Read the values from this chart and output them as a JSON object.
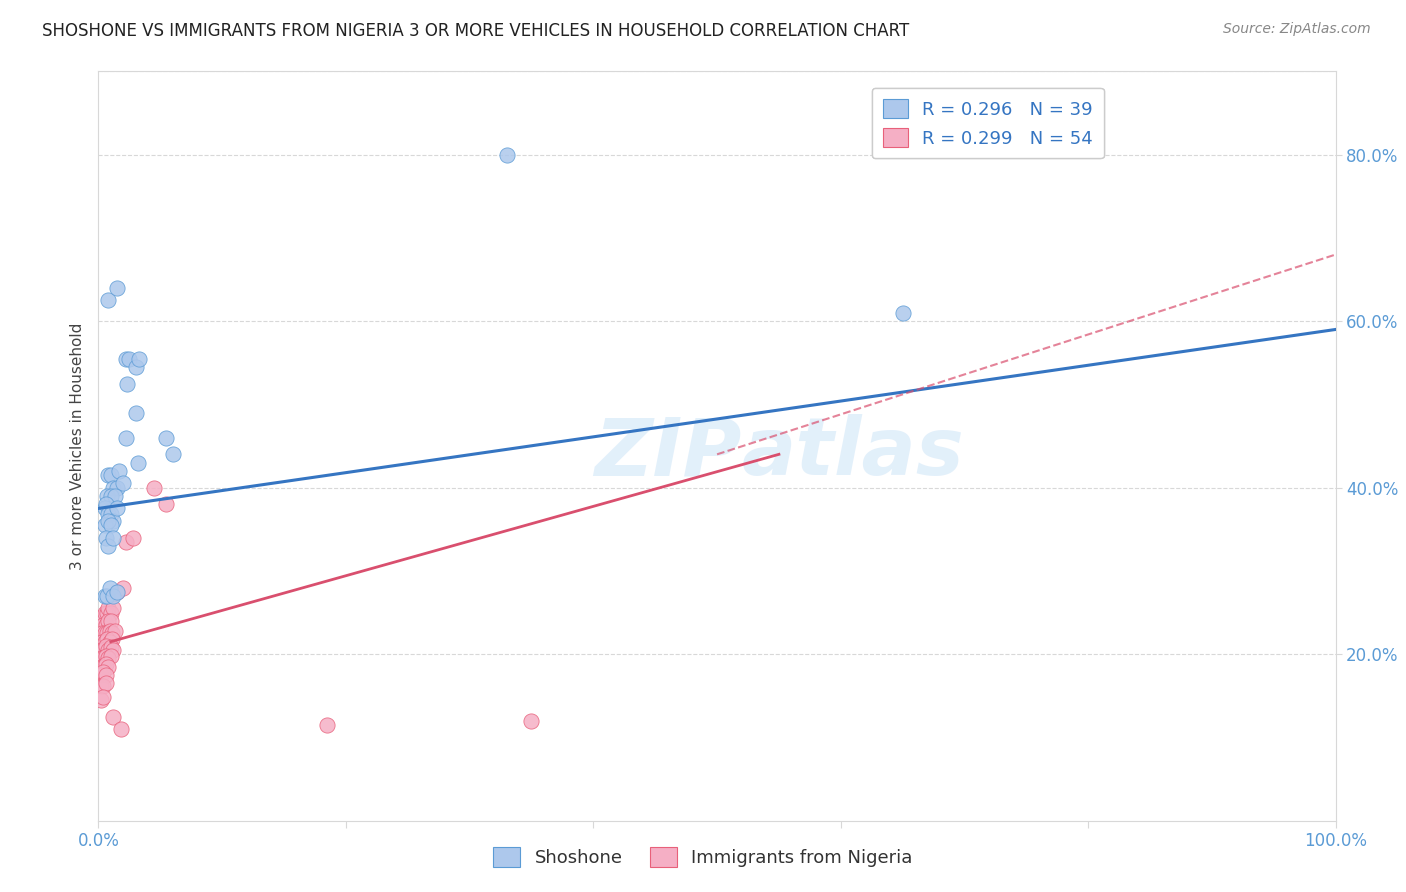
{
  "title": "SHOSHONE VS IMMIGRANTS FROM NIGERIA 3 OR MORE VEHICLES IN HOUSEHOLD CORRELATION CHART",
  "source": "Source: ZipAtlas.com",
  "ylabel": "3 or more Vehicles in Household",
  "legend_label1": "Shoshone",
  "legend_label2": "Immigrants from Nigeria",
  "watermark": "ZIPatlas",
  "shoshone_color": "#adc8ec",
  "nigeria_color": "#f5afc5",
  "shoshone_edge_color": "#5b9bd5",
  "nigeria_edge_color": "#e8607a",
  "shoshone_line_color": "#3575c2",
  "nigeria_line_color": "#d94f6e",
  "grid_color": "#d8d8d8",
  "ytick_color": "#5b9bd5",
  "xtick_color": "#5b9bd5",
  "shoshone_scatter": [
    [
      0.008,
      0.625
    ],
    [
      0.015,
      0.64
    ],
    [
      0.022,
      0.555
    ],
    [
      0.023,
      0.525
    ],
    [
      0.025,
      0.555
    ],
    [
      0.03,
      0.49
    ],
    [
      0.03,
      0.545
    ],
    [
      0.033,
      0.555
    ],
    [
      0.022,
      0.46
    ],
    [
      0.032,
      0.43
    ],
    [
      0.008,
      0.415
    ],
    [
      0.01,
      0.415
    ],
    [
      0.012,
      0.4
    ],
    [
      0.015,
      0.4
    ],
    [
      0.017,
      0.42
    ],
    [
      0.02,
      0.405
    ],
    [
      0.007,
      0.39
    ],
    [
      0.01,
      0.39
    ],
    [
      0.013,
      0.39
    ],
    [
      0.005,
      0.375
    ],
    [
      0.006,
      0.38
    ],
    [
      0.008,
      0.368
    ],
    [
      0.01,
      0.368
    ],
    [
      0.012,
      0.36
    ],
    [
      0.015,
      0.375
    ],
    [
      0.005,
      0.355
    ],
    [
      0.008,
      0.36
    ],
    [
      0.01,
      0.355
    ],
    [
      0.006,
      0.34
    ],
    [
      0.008,
      0.33
    ],
    [
      0.012,
      0.34
    ],
    [
      0.005,
      0.27
    ],
    [
      0.007,
      0.27
    ],
    [
      0.009,
      0.28
    ],
    [
      0.012,
      0.27
    ],
    [
      0.015,
      0.275
    ],
    [
      0.055,
      0.46
    ],
    [
      0.06,
      0.44
    ],
    [
      0.65,
      0.61
    ],
    [
      0.33,
      0.8
    ]
  ],
  "nigeria_scatter": [
    [
      0.003,
      0.245
    ],
    [
      0.005,
      0.25
    ],
    [
      0.007,
      0.25
    ],
    [
      0.008,
      0.255
    ],
    [
      0.01,
      0.25
    ],
    [
      0.012,
      0.255
    ],
    [
      0.004,
      0.235
    ],
    [
      0.006,
      0.235
    ],
    [
      0.008,
      0.24
    ],
    [
      0.01,
      0.24
    ],
    [
      0.003,
      0.225
    ],
    [
      0.005,
      0.225
    ],
    [
      0.007,
      0.225
    ],
    [
      0.009,
      0.228
    ],
    [
      0.011,
      0.225
    ],
    [
      0.013,
      0.228
    ],
    [
      0.003,
      0.215
    ],
    [
      0.005,
      0.215
    ],
    [
      0.007,
      0.218
    ],
    [
      0.009,
      0.215
    ],
    [
      0.011,
      0.218
    ],
    [
      0.002,
      0.205
    ],
    [
      0.004,
      0.205
    ],
    [
      0.006,
      0.21
    ],
    [
      0.008,
      0.205
    ],
    [
      0.01,
      0.208
    ],
    [
      0.012,
      0.205
    ],
    [
      0.002,
      0.195
    ],
    [
      0.004,
      0.195
    ],
    [
      0.006,
      0.198
    ],
    [
      0.008,
      0.195
    ],
    [
      0.01,
      0.198
    ],
    [
      0.002,
      0.185
    ],
    [
      0.004,
      0.185
    ],
    [
      0.006,
      0.188
    ],
    [
      0.008,
      0.185
    ],
    [
      0.002,
      0.175
    ],
    [
      0.004,
      0.178
    ],
    [
      0.006,
      0.175
    ],
    [
      0.002,
      0.162
    ],
    [
      0.004,
      0.162
    ],
    [
      0.006,
      0.165
    ],
    [
      0.002,
      0.145
    ],
    [
      0.004,
      0.148
    ],
    [
      0.015,
      0.275
    ],
    [
      0.02,
      0.28
    ],
    [
      0.022,
      0.335
    ],
    [
      0.028,
      0.34
    ],
    [
      0.045,
      0.4
    ],
    [
      0.055,
      0.38
    ],
    [
      0.012,
      0.125
    ],
    [
      0.018,
      0.11
    ],
    [
      0.35,
      0.12
    ],
    [
      0.185,
      0.115
    ]
  ],
  "shoshone_line": [
    0.0,
    1.0,
    0.375,
    0.59
  ],
  "nigeria_solid_line": [
    0.01,
    0.55,
    0.215,
    0.44
  ],
  "nigeria_dashed_line": [
    0.5,
    1.0,
    0.44,
    0.68
  ],
  "xlim": [
    0.0,
    1.0
  ],
  "ylim": [
    0.0,
    0.9
  ]
}
